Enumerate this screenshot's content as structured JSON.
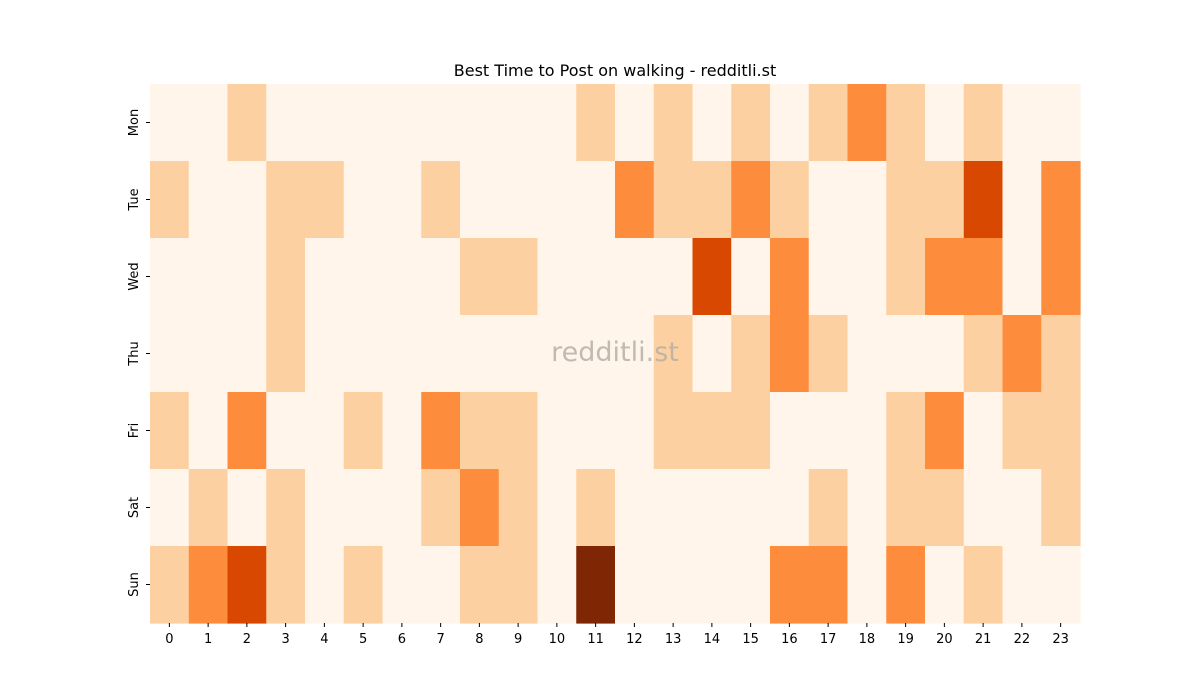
{
  "chart_data": {
    "type": "heatmap",
    "title": "Best Time to Post on walking - redditli.st",
    "watermark": "redditli.st",
    "x_labels": [
      "0",
      "1",
      "2",
      "3",
      "4",
      "5",
      "6",
      "7",
      "8",
      "9",
      "10",
      "11",
      "12",
      "13",
      "14",
      "15",
      "16",
      "17",
      "18",
      "19",
      "20",
      "21",
      "22",
      "23"
    ],
    "y_labels": [
      "Mon",
      "Tue",
      "Wed",
      "Thu",
      "Fri",
      "Sat",
      "Sun"
    ],
    "levels_note": "cell values are ordinal intensity levels 0-4 read from color",
    "colors": [
      "#fff5eb",
      "#fdd0a2",
      "#fd8d3c",
      "#d94801",
      "#7f2704"
    ],
    "values": [
      [
        0,
        0,
        1,
        0,
        0,
        0,
        0,
        0,
        0,
        0,
        0,
        1,
        0,
        1,
        0,
        1,
        0,
        1,
        2,
        1,
        0,
        1,
        0,
        0
      ],
      [
        1,
        0,
        0,
        1,
        1,
        0,
        0,
        1,
        0,
        0,
        0,
        0,
        2,
        1,
        1,
        2,
        1,
        0,
        0,
        1,
        1,
        3,
        0,
        2
      ],
      [
        0,
        0,
        0,
        1,
        0,
        0,
        0,
        0,
        1,
        1,
        0,
        0,
        0,
        0,
        3,
        0,
        2,
        0,
        0,
        1,
        2,
        2,
        0,
        2
      ],
      [
        0,
        0,
        0,
        1,
        0,
        0,
        0,
        0,
        0,
        0,
        0,
        0,
        0,
        1,
        0,
        1,
        2,
        1,
        0,
        0,
        0,
        1,
        2,
        1
      ],
      [
        1,
        0,
        2,
        0,
        0,
        1,
        0,
        2,
        1,
        1,
        0,
        0,
        0,
        1,
        1,
        1,
        0,
        0,
        0,
        1,
        2,
        0,
        1,
        1
      ],
      [
        0,
        1,
        0,
        1,
        0,
        0,
        0,
        1,
        2,
        1,
        0,
        1,
        0,
        0,
        0,
        0,
        0,
        1,
        0,
        1,
        1,
        0,
        0,
        1
      ],
      [
        1,
        2,
        3,
        1,
        0,
        1,
        0,
        0,
        1,
        1,
        0,
        4,
        0,
        0,
        0,
        0,
        2,
        2,
        0,
        2,
        0,
        1,
        0,
        0
      ]
    ]
  }
}
